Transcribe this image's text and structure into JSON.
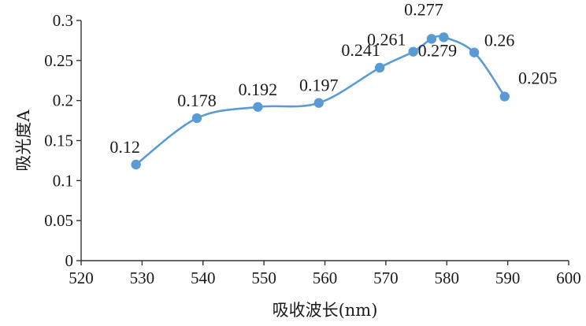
{
  "chart_data": {
    "type": "line",
    "xlabel": "吸收波长(nm)",
    "ylabel": "吸光度A",
    "xlim": [
      520,
      600
    ],
    "ylim": [
      0,
      0.3
    ],
    "x_ticks": [
      "520",
      "530",
      "540",
      "550",
      "560",
      "570",
      "580",
      "590",
      "600"
    ],
    "y_ticks": [
      "0",
      "0.05",
      "0.1",
      "0.15",
      "0.2",
      "0.25",
      "0.3"
    ],
    "grid": false,
    "smooth": true,
    "color": "#5b9bd5",
    "series": [
      {
        "points": [
          {
            "x": 529,
            "y": 0.12,
            "label": "0.12"
          },
          {
            "x": 539,
            "y": 0.178,
            "label": "0.178"
          },
          {
            "x": 549,
            "y": 0.192,
            "label": "0.192"
          },
          {
            "x": 559,
            "y": 0.197,
            "label": "0.197"
          },
          {
            "x": 569,
            "y": 0.241,
            "label": "0.241"
          },
          {
            "x": 574.5,
            "y": 0.261,
            "label": "0.261"
          },
          {
            "x": 577.5,
            "y": 0.277,
            "label": "0.277"
          },
          {
            "x": 579.5,
            "y": 0.279,
            "label": "0.279"
          },
          {
            "x": 584.5,
            "y": 0.26,
            "label": "0.26"
          },
          {
            "x": 589.5,
            "y": 0.205,
            "label": "0.205"
          }
        ]
      }
    ]
  }
}
